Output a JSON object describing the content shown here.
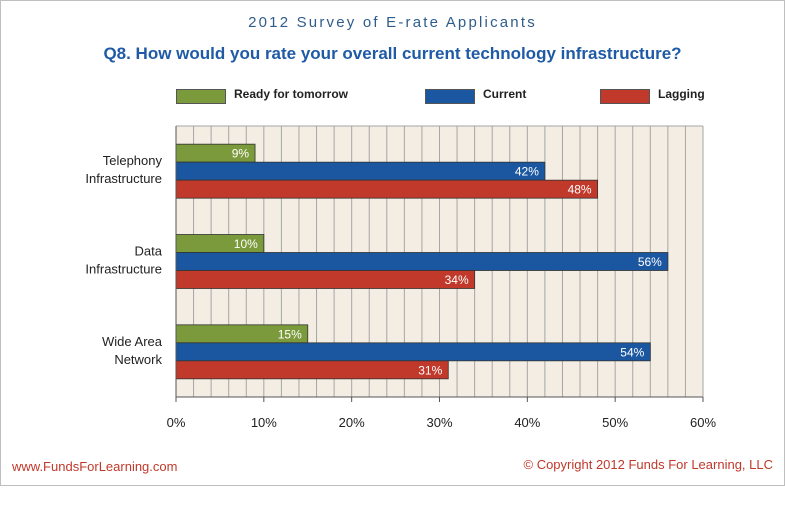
{
  "header": {
    "survey_title": "2012 Survey of E-rate Applicants",
    "question": "Q8. How would you rate your overall current technology infrastructure?"
  },
  "footer": {
    "website": "www.FundsForLearning.com",
    "copyright": "© Copyright 2012  Funds For Learning, LLC"
  },
  "colors": {
    "plot_background": "#f3ede3",
    "gridline": "#a6a6a6"
  },
  "chart_data": {
    "type": "bar",
    "orientation": "horizontal",
    "title": "Q8. How would you rate your overall current technology infrastructure?",
    "categories": [
      [
        "Telephony",
        "Infrastructure"
      ],
      [
        "Data",
        "Infrastructure"
      ],
      [
        "Wide Area",
        "Network"
      ]
    ],
    "series": [
      {
        "name": "Ready for tomorrow",
        "color": "#7a9a3c",
        "values": [
          9,
          10,
          15
        ],
        "labels": [
          "9%",
          "10%",
          "15%"
        ]
      },
      {
        "name": "Current",
        "color": "#1b57a1",
        "values": [
          42,
          56,
          54
        ],
        "labels": [
          "42%",
          "56%",
          "54%"
        ]
      },
      {
        "name": "Lagging",
        "color": "#c0392b",
        "values": [
          48,
          34,
          31
        ],
        "labels": [
          "48%",
          "34%",
          "31%"
        ]
      }
    ],
    "xlim": [
      0,
      60
    ],
    "xticks": [
      0,
      10,
      20,
      30,
      40,
      50,
      60
    ],
    "xtick_labels": [
      "0%",
      "10%",
      "20%",
      "30%",
      "40%",
      "50%",
      "60%"
    ],
    "grid": true,
    "legend_position": "top"
  }
}
